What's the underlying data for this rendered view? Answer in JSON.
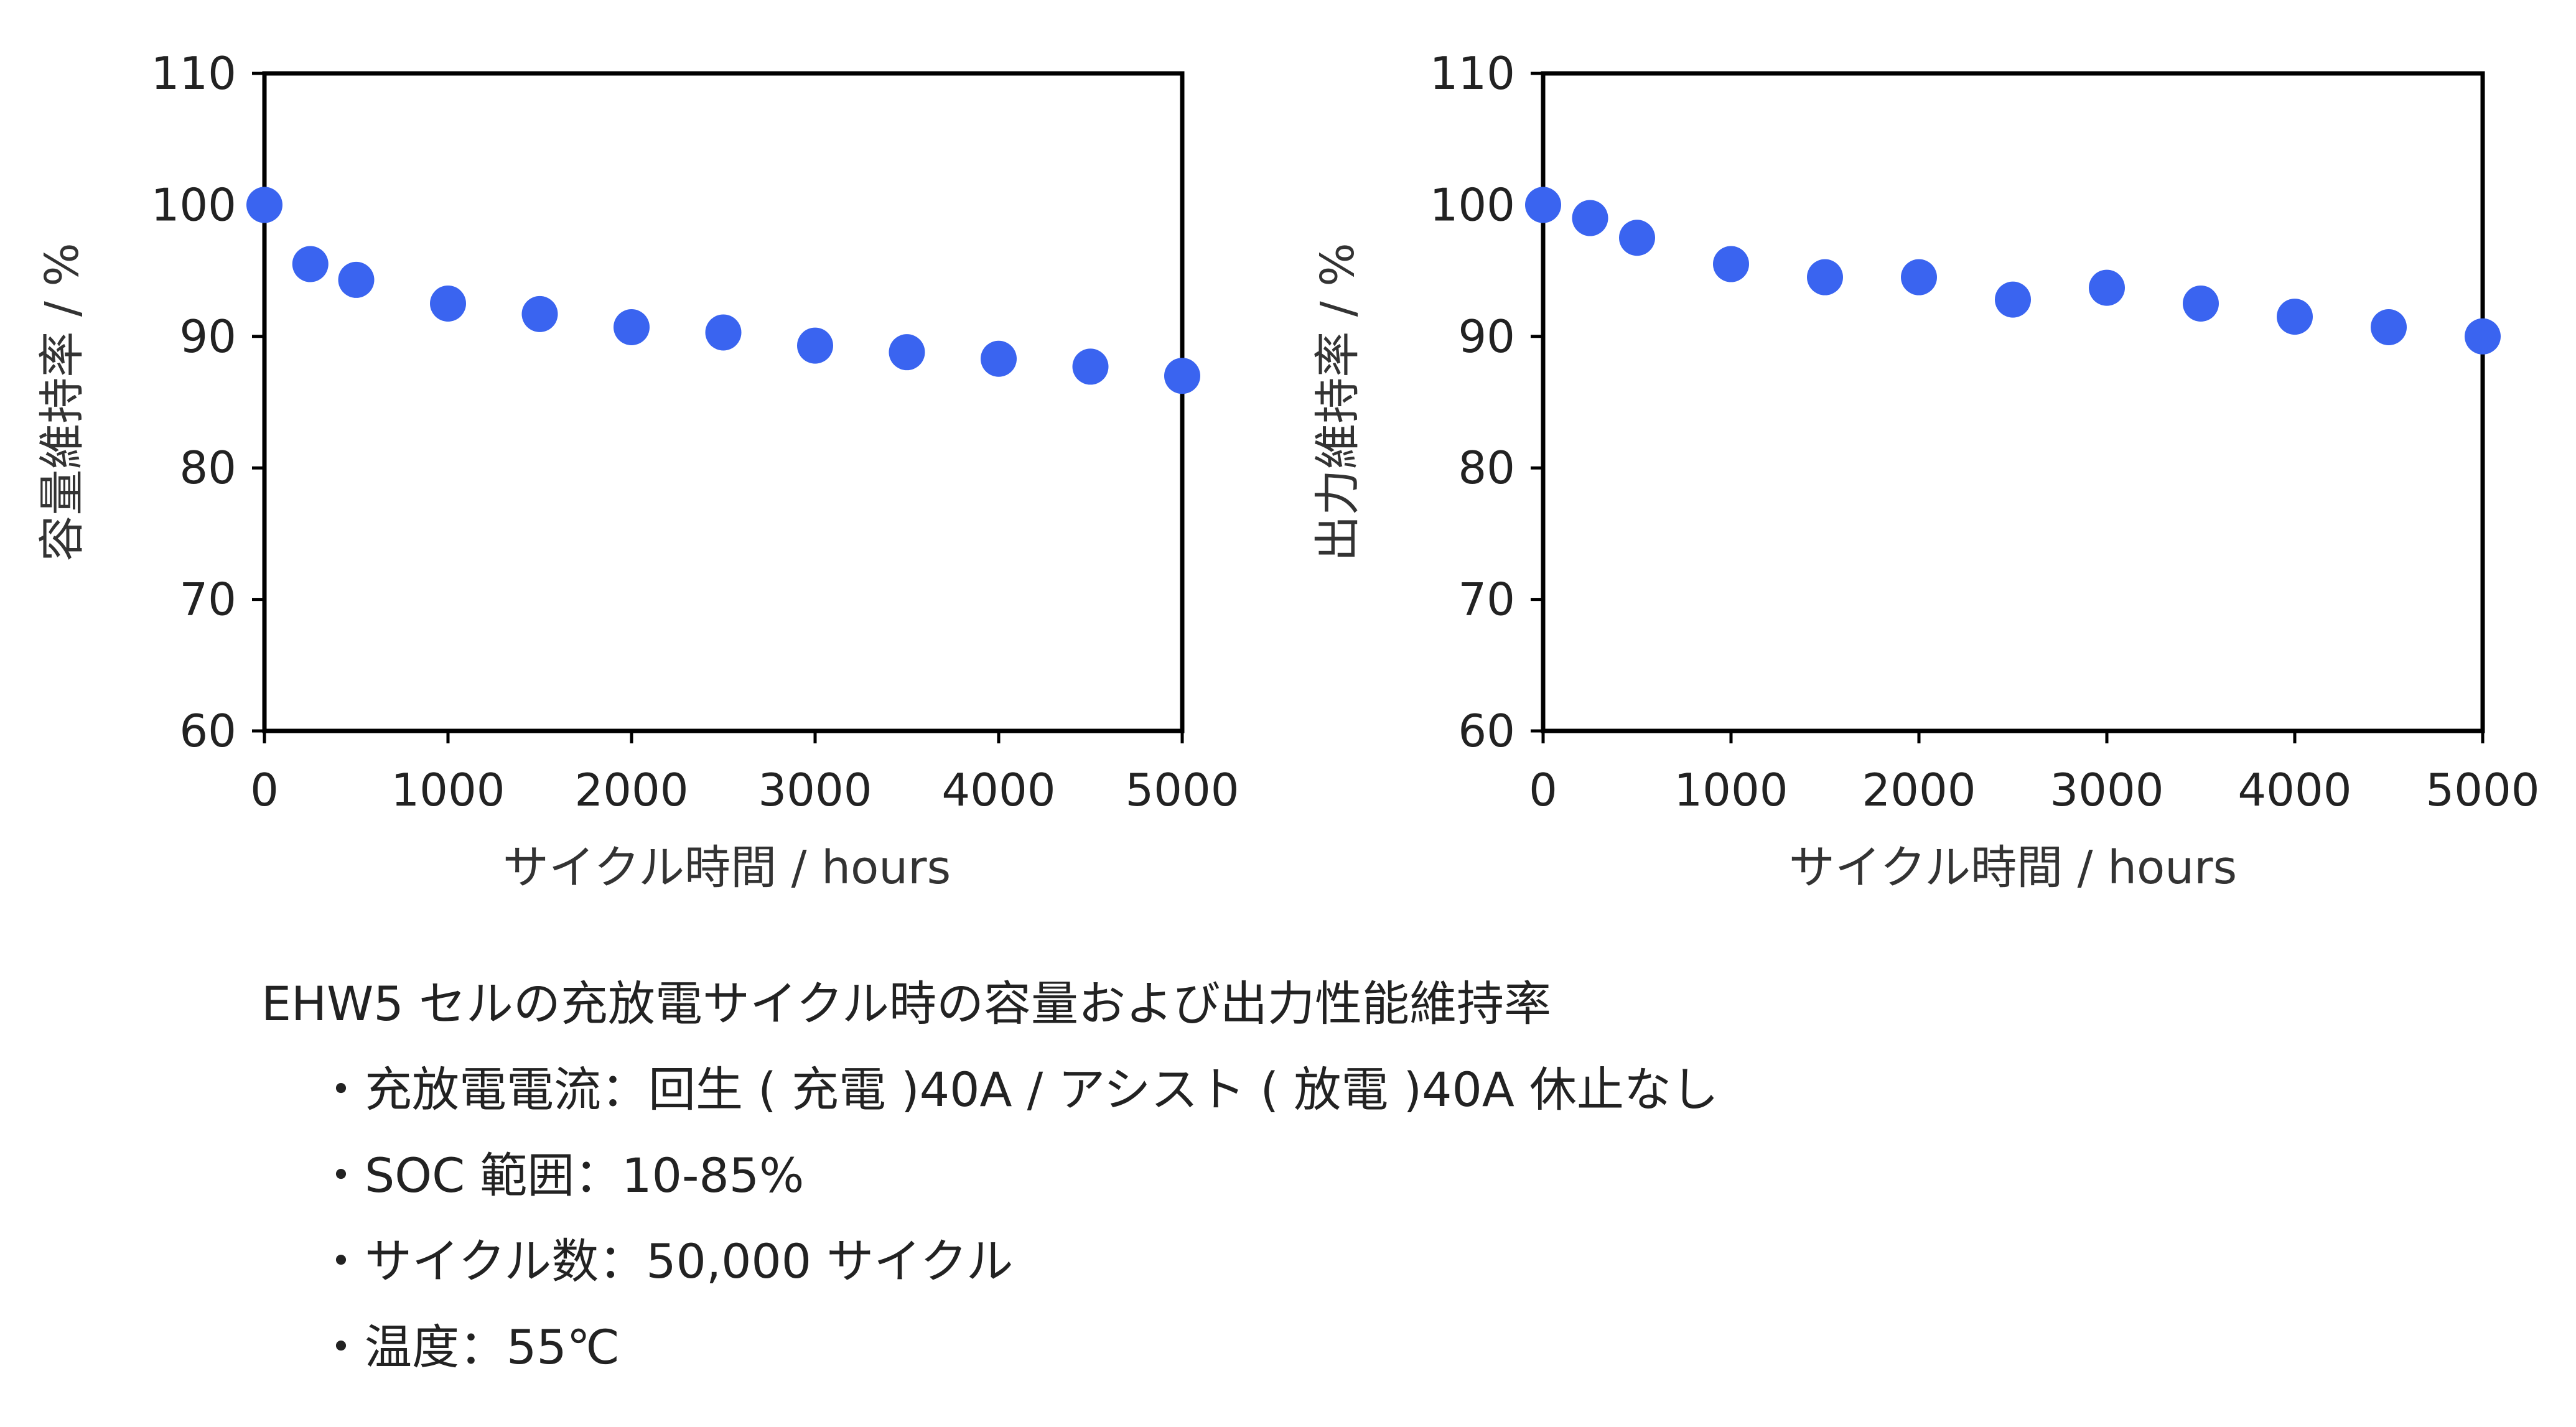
{
  "chart_data": [
    {
      "type": "scatter",
      "title": "",
      "xlabel": "サイクル時間 / hours",
      "ylabel": "容量維持率 / %",
      "xlim": [
        0,
        5000
      ],
      "ylim": [
        60,
        110
      ],
      "xticks": [
        0,
        1000,
        2000,
        3000,
        4000,
        5000
      ],
      "yticks": [
        60,
        70,
        80,
        90,
        100,
        110
      ],
      "grid": false,
      "marker_color": "#3a64f0",
      "series": [
        {
          "x": [
            0,
            250,
            500,
            1000,
            1500,
            2000,
            2500,
            3000,
            3500,
            4000,
            4500,
            5000
          ],
          "y": [
            100,
            95.5,
            94.3,
            92.5,
            91.7,
            90.7,
            90.3,
            89.3,
            88.8,
            88.3,
            87.7,
            87
          ]
        }
      ]
    },
    {
      "type": "scatter",
      "title": "",
      "xlabel": "サイクル時間 / hours",
      "ylabel": "出力維持率 / %",
      "xlim": [
        0,
        5000
      ],
      "ylim": [
        60,
        110
      ],
      "xticks": [
        0,
        1000,
        2000,
        3000,
        4000,
        5000
      ],
      "yticks": [
        60,
        70,
        80,
        90,
        100,
        110
      ],
      "grid": false,
      "marker_color": "#3a64f0",
      "series": [
        {
          "x": [
            0,
            250,
            500,
            1000,
            1500,
            2000,
            2500,
            3000,
            3500,
            4000,
            4500,
            5000
          ],
          "y": [
            100,
            99,
            97.5,
            95.5,
            94.5,
            94.5,
            92.8,
            93.7,
            92.5,
            91.5,
            90.7,
            90
          ]
        }
      ]
    }
  ],
  "caption": {
    "title": "EHW5 セルの充放電サイクル時の容量および出力性能維持率",
    "items": [
      "充放電電流：回生 ( 充電 )40A / アシスト ( 放電 )40A 休止なし",
      "SOC 範囲：10-85%",
      "サイクル数：50,000 サイクル",
      "温度：55℃"
    ]
  }
}
